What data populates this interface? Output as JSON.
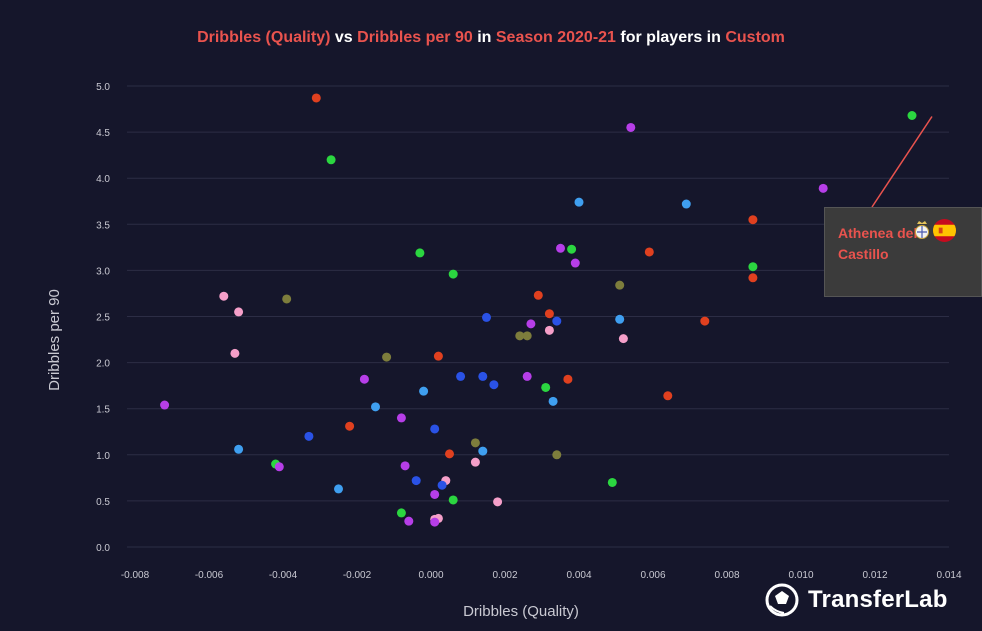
{
  "title": {
    "x_metric": "Dribbles (Quality)",
    "vs": "vs",
    "y_metric": "Dribbles per 90",
    "in": "in",
    "season": "Season 2020-21",
    "for_players_in": "for players in",
    "group": "Custom"
  },
  "tooltip": {
    "player_name": "Athenea del Castillo",
    "club_icon": "real-madrid-crest-icon",
    "flag_icon": "spain-flag-icon"
  },
  "brand": {
    "name": "TransferLab",
    "icon": "football-logo-icon"
  },
  "colors": {
    "background": "#15162b",
    "accent": "#e9534e",
    "grid": "#2c2d45",
    "red": "#e0401f",
    "green": "#2bd640",
    "purple": "#b63ee8",
    "lightblue": "#3f9ff0",
    "blue": "#2a52e6",
    "pink": "#f59fc9",
    "olive": "#7d7d3c"
  },
  "chart_data": {
    "type": "scatter",
    "xlabel": "Dribbles (Quality)",
    "ylabel": "Dribbles per 90",
    "xlim": [
      -0.008,
      0.014
    ],
    "ylim": [
      0,
      5.0
    ],
    "x_ticks": [
      "-0.008",
      "-0.006",
      "-0.004",
      "-0.002",
      "0.000",
      "0.002",
      "0.004",
      "0.006",
      "0.008",
      "0.010",
      "0.012",
      "0.014"
    ],
    "y_ticks": [
      "0.0",
      "0.5",
      "1.0",
      "1.5",
      "2.0",
      "2.5",
      "3.0",
      "3.5",
      "4.0",
      "4.5",
      "5.0"
    ],
    "grid": "horizontal",
    "highlighted_point": {
      "x": 0.013,
      "y": 4.68
    },
    "points": [
      {
        "x": -0.0031,
        "y": 4.87,
        "c": "red"
      },
      {
        "x": -0.0027,
        "y": 4.2,
        "c": "green"
      },
      {
        "x": 0.013,
        "y": 4.68,
        "c": "green"
      },
      {
        "x": 0.0054,
        "y": 4.55,
        "c": "purple"
      },
      {
        "x": 0.0106,
        "y": 3.89,
        "c": "purple"
      },
      {
        "x": 0.004,
        "y": 3.74,
        "c": "lightblue"
      },
      {
        "x": 0.0069,
        "y": 3.72,
        "c": "lightblue"
      },
      {
        "x": 0.0087,
        "y": 3.55,
        "c": "red"
      },
      {
        "x": 0.0035,
        "y": 3.24,
        "c": "purple"
      },
      {
        "x": 0.0038,
        "y": 3.23,
        "c": "green"
      },
      {
        "x": -0.0003,
        "y": 3.19,
        "c": "green"
      },
      {
        "x": 0.0059,
        "y": 3.2,
        "c": "red"
      },
      {
        "x": 0.0039,
        "y": 3.08,
        "c": "purple"
      },
      {
        "x": 0.0087,
        "y": 3.04,
        "c": "green"
      },
      {
        "x": 0.0006,
        "y": 2.96,
        "c": "green"
      },
      {
        "x": 0.0087,
        "y": 2.92,
        "c": "red"
      },
      {
        "x": 0.0051,
        "y": 2.84,
        "c": "olive"
      },
      {
        "x": -0.0056,
        "y": 2.72,
        "c": "pink"
      },
      {
        "x": -0.0039,
        "y": 2.69,
        "c": "olive"
      },
      {
        "x": 0.0029,
        "y": 2.73,
        "c": "red"
      },
      {
        "x": -0.0052,
        "y": 2.55,
        "c": "pink"
      },
      {
        "x": 0.0032,
        "y": 2.53,
        "c": "red"
      },
      {
        "x": 0.0015,
        "y": 2.49,
        "c": "blue"
      },
      {
        "x": 0.0034,
        "y": 2.45,
        "c": "blue"
      },
      {
        "x": 0.0051,
        "y": 2.47,
        "c": "lightblue"
      },
      {
        "x": 0.0074,
        "y": 2.45,
        "c": "red"
      },
      {
        "x": 0.0027,
        "y": 2.42,
        "c": "purple"
      },
      {
        "x": 0.0032,
        "y": 2.35,
        "c": "pink"
      },
      {
        "x": 0.0024,
        "y": 2.29,
        "c": "olive"
      },
      {
        "x": 0.0026,
        "y": 2.29,
        "c": "olive"
      },
      {
        "x": 0.0052,
        "y": 2.26,
        "c": "pink"
      },
      {
        "x": -0.0053,
        "y": 2.1,
        "c": "pink"
      },
      {
        "x": -0.0012,
        "y": 2.06,
        "c": "olive"
      },
      {
        "x": 0.0002,
        "y": 2.07,
        "c": "red"
      },
      {
        "x": -0.0018,
        "y": 1.82,
        "c": "purple"
      },
      {
        "x": 0.0008,
        "y": 1.85,
        "c": "blue"
      },
      {
        "x": 0.0014,
        "y": 1.85,
        "c": "blue"
      },
      {
        "x": 0.0026,
        "y": 1.85,
        "c": "purple"
      },
      {
        "x": 0.0037,
        "y": 1.82,
        "c": "red"
      },
      {
        "x": 0.0017,
        "y": 1.76,
        "c": "blue"
      },
      {
        "x": -0.0002,
        "y": 1.69,
        "c": "lightblue"
      },
      {
        "x": 0.0031,
        "y": 1.73,
        "c": "green"
      },
      {
        "x": 0.0064,
        "y": 1.64,
        "c": "red"
      },
      {
        "x": 0.0033,
        "y": 1.58,
        "c": "lightblue"
      },
      {
        "x": -0.0072,
        "y": 1.54,
        "c": "purple"
      },
      {
        "x": -0.0015,
        "y": 1.52,
        "c": "lightblue"
      },
      {
        "x": -0.0008,
        "y": 1.4,
        "c": "purple"
      },
      {
        "x": -0.0022,
        "y": 1.31,
        "c": "red"
      },
      {
        "x": 0.0001,
        "y": 1.28,
        "c": "blue"
      },
      {
        "x": -0.0033,
        "y": 1.2,
        "c": "blue"
      },
      {
        "x": 0.0012,
        "y": 1.13,
        "c": "olive"
      },
      {
        "x": -0.0052,
        "y": 1.06,
        "c": "lightblue"
      },
      {
        "x": 0.0005,
        "y": 1.01,
        "c": "red"
      },
      {
        "x": 0.0014,
        "y": 1.04,
        "c": "lightblue"
      },
      {
        "x": 0.0034,
        "y": 1.0,
        "c": "olive"
      },
      {
        "x": 0.0012,
        "y": 0.92,
        "c": "pink"
      },
      {
        "x": -0.0042,
        "y": 0.9,
        "c": "green"
      },
      {
        "x": -0.0041,
        "y": 0.87,
        "c": "purple"
      },
      {
        "x": -0.0007,
        "y": 0.88,
        "c": "purple"
      },
      {
        "x": 0.0004,
        "y": 0.72,
        "c": "pink"
      },
      {
        "x": -0.0004,
        "y": 0.72,
        "c": "blue"
      },
      {
        "x": 0.0003,
        "y": 0.67,
        "c": "blue"
      },
      {
        "x": 0.0049,
        "y": 0.7,
        "c": "green"
      },
      {
        "x": -0.0025,
        "y": 0.63,
        "c": "lightblue"
      },
      {
        "x": 0.0001,
        "y": 0.57,
        "c": "purple"
      },
      {
        "x": 0.0006,
        "y": 0.51,
        "c": "green"
      },
      {
        "x": 0.0018,
        "y": 0.49,
        "c": "pink"
      },
      {
        "x": -0.0008,
        "y": 0.37,
        "c": "green"
      },
      {
        "x": -0.0006,
        "y": 0.28,
        "c": "purple"
      },
      {
        "x": 0.0002,
        "y": 0.31,
        "c": "pink"
      },
      {
        "x": 0.0001,
        "y": 0.3,
        "c": "pink"
      },
      {
        "x": 0.0001,
        "y": 0.27,
        "c": "purple"
      }
    ]
  }
}
